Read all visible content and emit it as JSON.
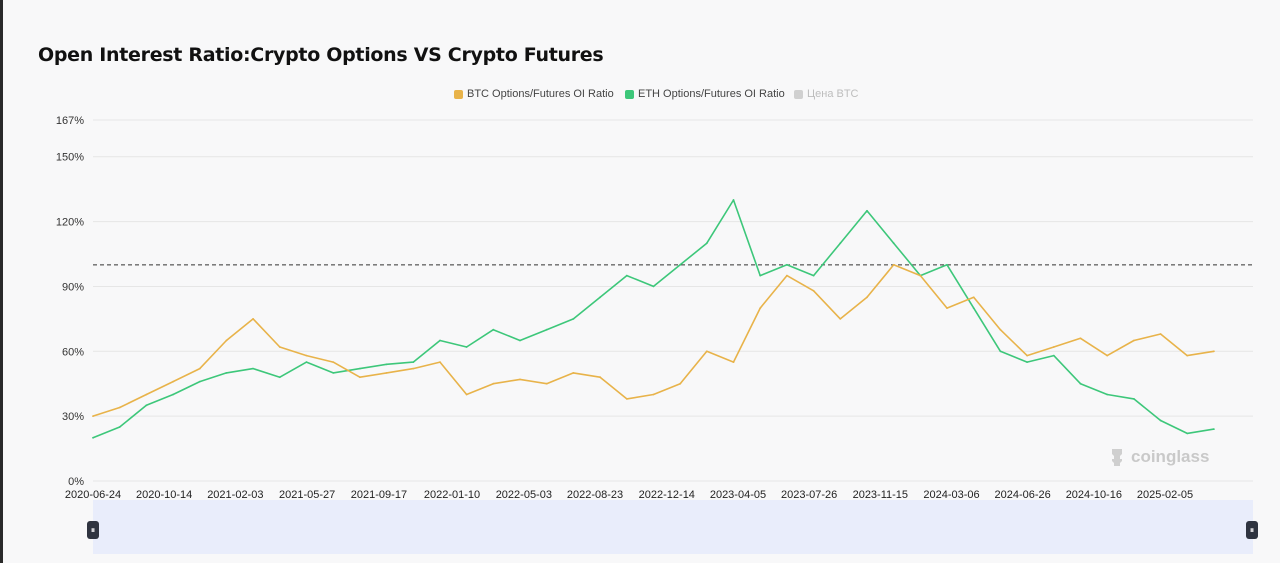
{
  "title": "Open Interest Ratio:Crypto Options VS Crypto Futures",
  "legend": [
    {
      "label": "BTC Options/Futures OI Ratio",
      "color": "#e8b34a",
      "icon": "square-swatch"
    },
    {
      "label": "ETH Options/Futures OI Ratio",
      "color": "#3dc77a",
      "icon": "square-swatch"
    },
    {
      "label": "Цена BTC",
      "color": "#d0d0d0",
      "icon": "square-swatch"
    }
  ],
  "watermark": "coinglass",
  "slider": {
    "left_icon": "⏸",
    "right_icon": "⏸"
  },
  "chart_data": {
    "type": "line",
    "x_tick_labels": [
      "2020-06-24",
      "2020-10-14",
      "2021-02-03",
      "2021-05-27",
      "2021-09-17",
      "2022-01-10",
      "2022-05-03",
      "2022-08-23",
      "2022-12-14",
      "2023-04-05",
      "2023-07-26",
      "2023-11-15",
      "2024-03-06",
      "2024-06-26",
      "2024-10-16",
      "2025-02-05"
    ],
    "y_tick_labels": [
      "0%",
      "30%",
      "60%",
      "90%",
      "120%",
      "150%",
      "167%"
    ],
    "ylim": [
      0,
      167
    ],
    "reference_line": 100,
    "x": [
      "2020-06-24",
      "2020-08-05",
      "2020-09-16",
      "2020-10-28",
      "2020-12-09",
      "2021-01-20",
      "2021-03-03",
      "2021-04-14",
      "2021-05-26",
      "2021-07-07",
      "2021-08-18",
      "2021-09-29",
      "2021-11-10",
      "2021-12-22",
      "2022-02-02",
      "2022-03-16",
      "2022-04-27",
      "2022-06-08",
      "2022-07-20",
      "2022-08-31",
      "2022-10-12",
      "2022-11-23",
      "2023-01-04",
      "2023-02-15",
      "2023-03-29",
      "2023-05-10",
      "2023-06-21",
      "2023-08-02",
      "2023-09-13",
      "2023-10-25",
      "2023-12-06",
      "2024-01-17",
      "2024-02-28",
      "2024-04-10",
      "2024-05-22",
      "2024-07-03",
      "2024-08-14",
      "2024-09-25",
      "2024-11-06",
      "2024-12-18",
      "2025-01-29",
      "2025-03-12",
      "2025-04-23"
    ],
    "series": [
      {
        "name": "BTC Options/Futures OI Ratio",
        "color": "#e8b34a",
        "values": [
          30,
          34,
          40,
          46,
          52,
          65,
          75,
          62,
          58,
          55,
          48,
          50,
          52,
          55,
          40,
          45,
          47,
          45,
          50,
          48,
          38,
          40,
          45,
          60,
          55,
          80,
          95,
          88,
          75,
          85,
          100,
          95,
          80,
          85,
          70,
          58,
          62,
          66,
          58,
          65,
          68,
          58,
          60
        ]
      },
      {
        "name": "ETH Options/Futures OI Ratio",
        "color": "#3dc77a",
        "values": [
          20,
          25,
          35,
          40,
          46,
          50,
          52,
          48,
          55,
          50,
          52,
          54,
          55,
          65,
          62,
          70,
          65,
          70,
          75,
          85,
          95,
          90,
          100,
          110,
          130,
          95,
          100,
          95,
          110,
          125,
          110,
          95,
          100,
          80,
          60,
          55,
          58,
          45,
          40,
          38,
          28,
          22,
          24
        ]
      }
    ]
  }
}
